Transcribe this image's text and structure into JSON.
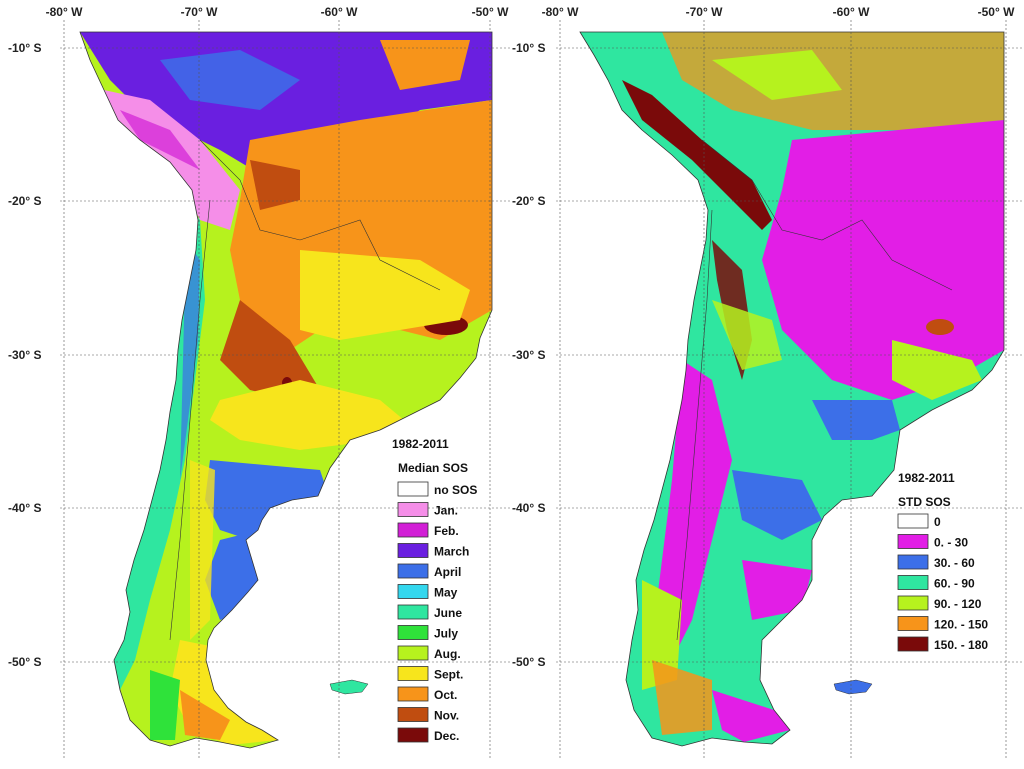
{
  "lon_ticks": [
    "-80° W",
    "-70° W",
    "-60° W",
    "-50° W"
  ],
  "lat_ticks": [
    "-10° S",
    "-20° S",
    "-30° S",
    "-40° S",
    "-50° S"
  ],
  "left": {
    "legend_period": "1982-2011",
    "legend_title": "Median SOS",
    "legend_items": [
      {
        "label": "no SOS",
        "color": "#ffffff"
      },
      {
        "label": "Jan.",
        "color": "#f58ee8"
      },
      {
        "label": "Feb.",
        "color": "#d21fd6"
      },
      {
        "label": "March",
        "color": "#6a1fe0"
      },
      {
        "label": "April",
        "color": "#3c6fe8"
      },
      {
        "label": "May",
        "color": "#33d7ee"
      },
      {
        "label": "June",
        "color": "#2fe6a0"
      },
      {
        "label": "July",
        "color": "#2fe23a"
      },
      {
        "label": "Aug.",
        "color": "#b6f21e"
      },
      {
        "label": "Sept.",
        "color": "#f7e51c"
      },
      {
        "label": "Oct.",
        "color": "#f7941a"
      },
      {
        "label": "Nov.",
        "color": "#c04d10"
      },
      {
        "label": "Dec.",
        "color": "#7a0a0a"
      }
    ]
  },
  "right": {
    "legend_period": "1982-2011",
    "legend_title": "STD SOS",
    "legend_items": [
      {
        "label": "0",
        "color": "#ffffff"
      },
      {
        "label": "0. - 30",
        "color": "#e21ee6"
      },
      {
        "label": "30. - 60",
        "color": "#3c6fe8"
      },
      {
        "label": "60. - 90",
        "color": "#2fe6a0"
      },
      {
        "label": "90. - 120",
        "color": "#b6f21e"
      },
      {
        "label": "120. - 150",
        "color": "#f7941a"
      },
      {
        "label": "150. - 180",
        "color": "#7a0a0a"
      }
    ]
  }
}
